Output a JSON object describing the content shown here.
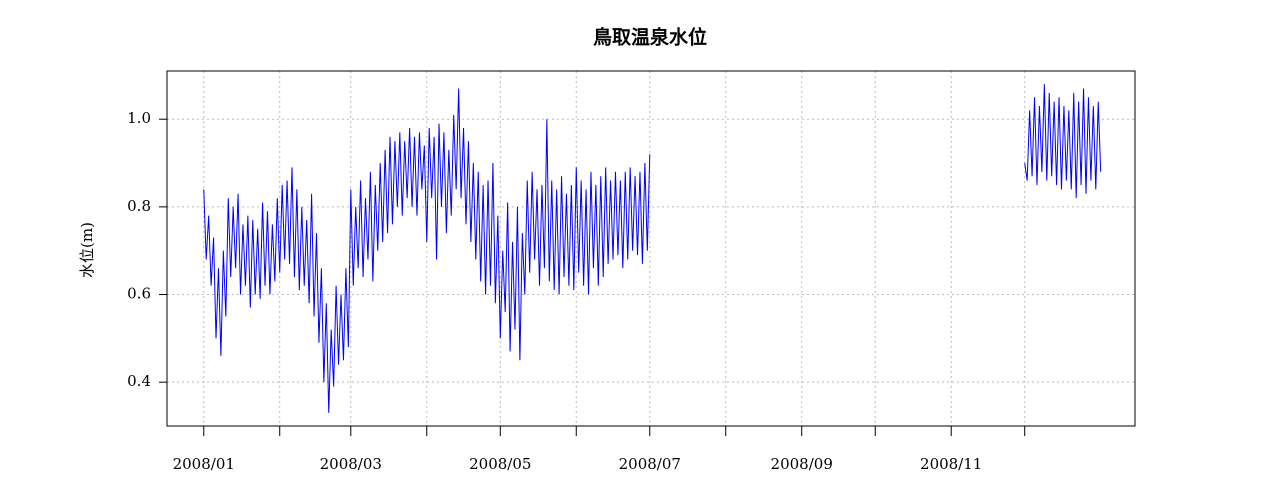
{
  "chart_data": {
    "type": "line",
    "title": "鳥取温泉水位",
    "y_label": "水位(m)",
    "color": "#0000ff",
    "grid": true,
    "xlim": [
      -15,
      380
    ],
    "ylim": [
      0.3,
      1.11
    ],
    "xticks": [
      {
        "value": 0,
        "label": "2008/01"
      },
      {
        "value": 60,
        "label": "2008/03"
      },
      {
        "value": 121,
        "label": "2008/05"
      },
      {
        "value": 182,
        "label": "2008/07"
      },
      {
        "value": 244,
        "label": "2008/09"
      },
      {
        "value": 305,
        "label": "2008/11"
      }
    ],
    "minor_xticks": [
      31,
      91,
      152,
      213,
      274,
      335
    ],
    "yticks": [
      0.4,
      0.6,
      0.8,
      {
        "value": 1,
        "label": "1.0"
      }
    ],
    "x": [
      0,
      1,
      2,
      3,
      4,
      5,
      6,
      7,
      8,
      9,
      10,
      11,
      12,
      13,
      14,
      15,
      16,
      17,
      18,
      19,
      20,
      21,
      22,
      23,
      24,
      25,
      26,
      27,
      28,
      29,
      30,
      31,
      32,
      33,
      34,
      35,
      36,
      37,
      38,
      39,
      40,
      41,
      42,
      43,
      44,
      45,
      46,
      47,
      48,
      49,
      50,
      51,
      52,
      53,
      54,
      55,
      56,
      57,
      58,
      59,
      60,
      61,
      62,
      63,
      64,
      65,
      66,
      67,
      68,
      69,
      70,
      71,
      72,
      73,
      74,
      75,
      76,
      77,
      78,
      79,
      80,
      81,
      82,
      83,
      84,
      85,
      86,
      87,
      88,
      89,
      90,
      91,
      92,
      93,
      94,
      95,
      96,
      97,
      98,
      99,
      100,
      101,
      102,
      103,
      104,
      105,
      106,
      107,
      108,
      109,
      110,
      111,
      112,
      113,
      114,
      115,
      116,
      117,
      118,
      119,
      120,
      121,
      122,
      123,
      124,
      125,
      126,
      127,
      128,
      129,
      130,
      131,
      132,
      133,
      134,
      135,
      136,
      137,
      138,
      139,
      140,
      141,
      142,
      143,
      144,
      145,
      146,
      147,
      148,
      149,
      150,
      151,
      152,
      153,
      154,
      155,
      156,
      157,
      158,
      159,
      160,
      161,
      162,
      163,
      164,
      165,
      166,
      167,
      168,
      169,
      170,
      171,
      172,
      173,
      174,
      175,
      176,
      177,
      178,
      179,
      180,
      181,
      182,
      250,
      335,
      336,
      337,
      338,
      339,
      340,
      341,
      342,
      343,
      344,
      345,
      346,
      347,
      348,
      349,
      350,
      351,
      352,
      353,
      354,
      355,
      356,
      357,
      358,
      359,
      360,
      361,
      362,
      363,
      364,
      365,
      366
    ],
    "values": [
      0.84,
      0.68,
      0.78,
      0.62,
      0.73,
      0.5,
      0.66,
      0.46,
      0.7,
      0.55,
      0.82,
      0.64,
      0.8,
      0.66,
      0.83,
      0.6,
      0.76,
      0.62,
      0.78,
      0.57,
      0.77,
      0.6,
      0.75,
      0.59,
      0.81,
      0.62,
      0.79,
      0.6,
      0.76,
      0.63,
      0.82,
      0.65,
      0.85,
      0.68,
      0.86,
      0.67,
      0.89,
      0.64,
      0.84,
      0.61,
      0.8,
      0.62,
      0.77,
      0.58,
      0.83,
      0.55,
      0.74,
      0.49,
      0.66,
      0.4,
      0.58,
      0.33,
      0.52,
      0.39,
      0.62,
      0.44,
      0.6,
      0.45,
      0.66,
      0.48,
      0.84,
      0.62,
      0.8,
      0.66,
      0.86,
      0.64,
      0.82,
      0.68,
      0.88,
      0.63,
      0.85,
      0.7,
      0.9,
      0.72,
      0.93,
      0.74,
      0.96,
      0.76,
      0.95,
      0.8,
      0.97,
      0.78,
      0.95,
      0.82,
      0.98,
      0.8,
      0.96,
      0.78,
      0.97,
      0.84,
      0.94,
      0.72,
      0.98,
      0.82,
      0.96,
      0.68,
      0.99,
      0.8,
      0.97,
      0.74,
      0.93,
      0.78,
      1.01,
      0.84,
      1.07,
      0.82,
      0.98,
      0.76,
      0.95,
      0.72,
      0.9,
      0.68,
      0.88,
      0.63,
      0.85,
      0.6,
      0.86,
      0.62,
      0.9,
      0.58,
      0.78,
      0.5,
      0.7,
      0.56,
      0.81,
      0.47,
      0.72,
      0.52,
      0.8,
      0.45,
      0.74,
      0.6,
      0.86,
      0.65,
      0.88,
      0.68,
      0.84,
      0.62,
      0.85,
      0.66,
      1.0,
      0.63,
      0.86,
      0.61,
      0.84,
      0.6,
      0.87,
      0.64,
      0.83,
      0.62,
      0.85,
      0.61,
      0.89,
      0.65,
      0.86,
      0.62,
      0.84,
      0.6,
      0.88,
      0.66,
      0.85,
      0.62,
      0.87,
      0.64,
      0.89,
      0.67,
      0.86,
      0.68,
      0.88,
      0.69,
      0.86,
      0.66,
      0.88,
      0.68,
      0.89,
      0.7,
      0.87,
      0.69,
      0.88,
      0.67,
      0.9,
      0.7,
      0.92,
      null,
      0.9,
      0.86,
      1.02,
      0.87,
      1.05,
      0.85,
      1.03,
      0.88,
      1.08,
      0.86,
      1.06,
      0.87,
      1.04,
      0.85,
      1.05,
      0.84,
      1.03,
      0.86,
      1.02,
      0.84,
      1.06,
      0.82,
      1.04,
      0.85,
      1.07,
      0.83,
      1.05,
      0.86,
      1.03,
      0.84,
      1.04,
      0.88
    ]
  }
}
